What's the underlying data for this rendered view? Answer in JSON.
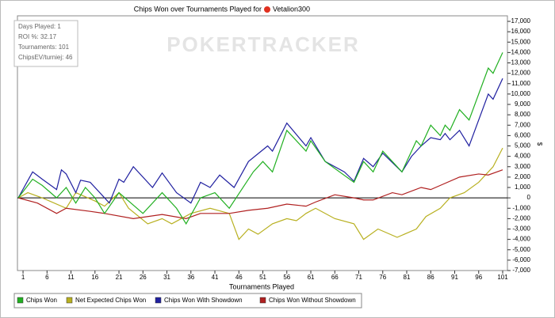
{
  "chart_data": {
    "type": "line",
    "title": "Chips Won over Tournaments Played for",
    "player": "Vetalion300",
    "watermark": "POKERTRACKER",
    "x_label": "Tournaments Played",
    "y_label": "$",
    "stats": [
      "Days Played: 1",
      "ROI %: 32.17",
      "Tournaments: 101",
      "ChipsEV/turniej: 46"
    ],
    "xlim": [
      0,
      101
    ],
    "xticks": [
      1,
      6,
      11,
      16,
      21,
      26,
      31,
      36,
      41,
      46,
      51,
      56,
      61,
      66,
      71,
      76,
      81,
      86,
      91,
      96,
      101
    ],
    "ylim": [
      -7000,
      17000
    ],
    "yticks": [
      {
        "value": -7000,
        "label": "-7,000"
      },
      {
        "value": -6000,
        "label": "-6,000"
      },
      {
        "value": -5000,
        "label": "-5,000"
      },
      {
        "value": -4000,
        "label": "-4,000"
      },
      {
        "value": -3000,
        "label": "-3,000"
      },
      {
        "value": -2000,
        "label": "-2,000"
      },
      {
        "value": -1000,
        "label": "-1,000"
      },
      0,
      {
        "value": 1000,
        "label": "1,000"
      },
      {
        "value": 2000,
        "label": "2,000"
      },
      {
        "value": 3000,
        "label": "3,000"
      },
      {
        "value": 4000,
        "label": "4,000"
      },
      {
        "value": 5000,
        "label": "5,000"
      },
      {
        "value": 6000,
        "label": "6,000"
      },
      {
        "value": 7000,
        "label": "7,000"
      },
      {
        "value": 8000,
        "label": "8,000"
      },
      {
        "value": 9000,
        "label": "9,000"
      },
      {
        "value": 10000,
        "label": "10,000"
      },
      {
        "value": 11000,
        "label": "11,000"
      },
      {
        "value": 12000,
        "label": "12,000"
      },
      {
        "value": 13000,
        "label": "13,000"
      },
      {
        "value": 14000,
        "label": "14,000"
      },
      {
        "value": 15000,
        "label": "15,000"
      },
      {
        "value": 16000,
        "label": "16,000"
      },
      {
        "value": 17000,
        "label": "17,000"
      }
    ],
    "zero_line": true,
    "series": [
      {
        "name": "Chips Won",
        "color": "#22b022",
        "x": [
          0,
          3,
          5,
          8,
          10,
          12,
          14,
          16,
          18,
          21,
          23,
          26,
          30,
          33,
          35,
          38,
          41,
          44,
          49,
          51,
          53,
          56,
          60,
          61,
          64,
          70,
          72,
          74,
          76,
          80,
          83,
          84,
          86,
          88,
          89,
          90,
          92,
          94,
          96,
          98,
          99,
          101
        ],
        "values": [
          0,
          1800,
          1200,
          0,
          1000,
          -500,
          1000,
          0,
          -1500,
          500,
          -300,
          -1500,
          500,
          -1000,
          -2500,
          0,
          500,
          -1000,
          2500,
          3500,
          2500,
          6500,
          4500,
          5500,
          3500,
          1500,
          3500,
          2500,
          4500,
          2500,
          5500,
          5000,
          7000,
          6000,
          7000,
          6500,
          8500,
          7500,
          10000,
          12500,
          12000,
          14000
        ]
      },
      {
        "name": "Net Expected Chips Won",
        "color": "#b8b020",
        "x": [
          0,
          2,
          5,
          10,
          12,
          16,
          18,
          21,
          23,
          27,
          30,
          32,
          36,
          40,
          44,
          46,
          48,
          50,
          53,
          56,
          58,
          60,
          62,
          66,
          70,
          72,
          75,
          79,
          83,
          85,
          88,
          90,
          93,
          96,
          99,
          101
        ],
        "values": [
          0,
          500,
          0,
          -1000,
          500,
          -300,
          -800,
          500,
          -1000,
          -2500,
          -2000,
          -2500,
          -1500,
          -1000,
          -1500,
          -4000,
          -3000,
          -3500,
          -2500,
          -2000,
          -2200,
          -1500,
          -1000,
          -2000,
          -2500,
          -4000,
          -3000,
          -3800,
          -3000,
          -1800,
          -1000,
          0,
          500,
          1500,
          3000,
          4800
        ]
      },
      {
        "name": "Chips Won With Showdown",
        "color": "#2020a0",
        "x": [
          0,
          3,
          5,
          8,
          9,
          10,
          12,
          13,
          15,
          19,
          21,
          22,
          24,
          28,
          30,
          33,
          36,
          38,
          40,
          42,
          45,
          48,
          52,
          53,
          56,
          60,
          61,
          64,
          68,
          70,
          72,
          74,
          76,
          80,
          82,
          84,
          86,
          88,
          89,
          90,
          92,
          94,
          98,
          99,
          101
        ],
        "values": [
          0,
          2500,
          1800,
          800,
          2700,
          2300,
          500,
          1700,
          1500,
          -500,
          1800,
          1500,
          3000,
          1000,
          2400,
          500,
          -500,
          1500,
          1000,
          2200,
          1000,
          3500,
          5000,
          4500,
          7200,
          5000,
          5800,
          3500,
          2500,
          1600,
          3800,
          3000,
          4300,
          2500,
          4000,
          5000,
          5800,
          5600,
          6200,
          5600,
          6500,
          5000,
          10000,
          9500,
          11500
        ]
      },
      {
        "name": "Chips Won Without Showdown",
        "color": "#b02020",
        "x": [
          0,
          4,
          8,
          10,
          15,
          18,
          24,
          30,
          35,
          38,
          44,
          48,
          52,
          56,
          60,
          62,
          66,
          70,
          72,
          74,
          78,
          80,
          84,
          86,
          88,
          92,
          96,
          98,
          101
        ],
        "values": [
          0,
          -500,
          -1500,
          -1000,
          -1300,
          -1500,
          -2000,
          -1600,
          -2000,
          -1500,
          -1500,
          -1200,
          -1000,
          -600,
          -800,
          -400,
          300,
          0,
          -200,
          -200,
          500,
          300,
          1000,
          800,
          1200,
          2000,
          2300,
          2200,
          2700
        ]
      }
    ]
  }
}
